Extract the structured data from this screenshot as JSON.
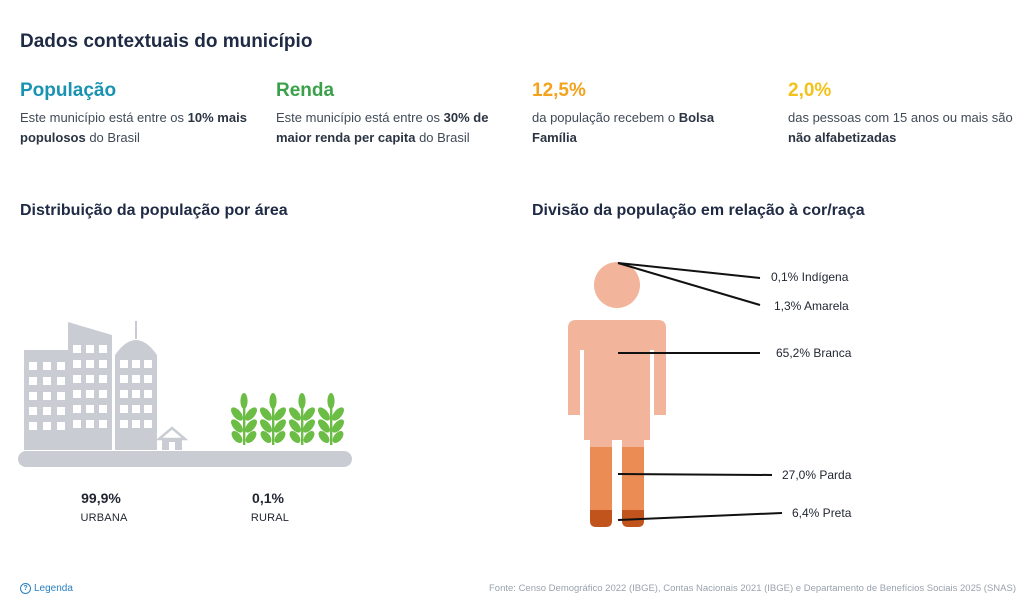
{
  "page_title": "Dados contextuais do município",
  "stats": [
    {
      "head": "População",
      "color": "#1a93b3",
      "desc_pre": "Este município está entre os ",
      "desc_bold": "10% mais populosos",
      "desc_post": " do Brasil"
    },
    {
      "head": "Renda",
      "color": "#3aa14a",
      "desc_pre": "Este município está entre os ",
      "desc_bold": "30% de maior renda per capita",
      "desc_post": " do Brasil"
    },
    {
      "head": "12,5%",
      "color": "#f2a31b",
      "desc_pre": "da população recebem o ",
      "desc_bold": "Bolsa Família",
      "desc_post": ""
    },
    {
      "head": "2,0%",
      "color": "#f2c21b",
      "desc_pre": "das pessoas com 15 anos ou mais são ",
      "desc_bold": "não alfabetizadas",
      "desc_post": ""
    }
  ],
  "area_section": {
    "title": "Distribuição da população por área",
    "urban": {
      "pct": "99,9%",
      "label": "URBANA"
    },
    "rural": {
      "pct": "0,1%",
      "label": "RURAL"
    }
  },
  "race_section": {
    "title": "Divisão da população em relação à cor/raça",
    "items": [
      {
        "label": "0,1% Indígena",
        "value": 0.1
      },
      {
        "label": "1,3% Amarela",
        "value": 1.3
      },
      {
        "label": "65,2% Branca",
        "value": 65.2
      },
      {
        "label": "27,0% Parda",
        "value": 27.0
      },
      {
        "label": "6,4% Preta",
        "value": 6.4
      }
    ],
    "colors": {
      "light": "#f2b49a",
      "medium": "#ec8c55",
      "dark": "#c0541c"
    }
  },
  "footer": {
    "legend_label": "Legenda",
    "source": "Fonte: Censo Demográfico 2022 (IBGE), Contas Nacionais 2021 (IBGE) e Departamento de Benefícios Sociais 2025 (SNAS)"
  },
  "icons": {
    "legend": "question-circle-icon",
    "urban": "city-buildings-icon",
    "rural": "wheat-plant-icon",
    "person": "person-figure-icon"
  }
}
